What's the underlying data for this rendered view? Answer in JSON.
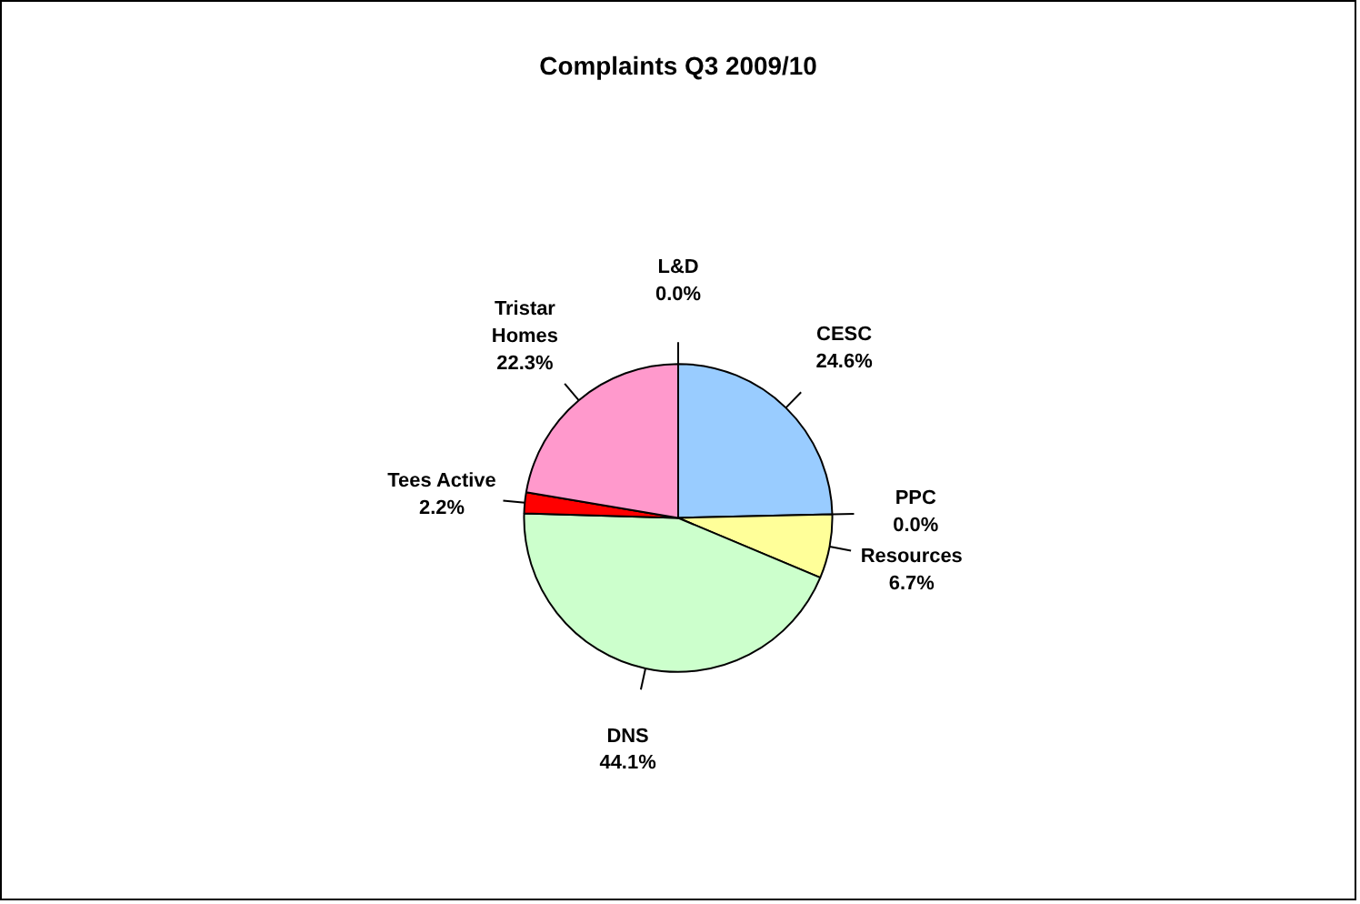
{
  "chart_data": {
    "type": "pie",
    "title": "Complaints Q3 2009/10",
    "categories": [
      "CESC",
      "PPC",
      "Resources",
      "DNS",
      "Tees Active",
      "Tristar Homes",
      "L&D"
    ],
    "values": [
      24.6,
      0.0,
      6.7,
      44.1,
      2.2,
      22.3,
      0.0
    ],
    "colors": [
      "#99ccff",
      "#993366",
      "#ffff99",
      "#ccffcc",
      "#ff0000",
      "#ff99cc",
      "#ffffcc"
    ],
    "value_labels": [
      "24.6%",
      "0.0%",
      "6.7%",
      "44.1%",
      "2.2%",
      "22.3%",
      "0.0%"
    ],
    "legend": false
  }
}
